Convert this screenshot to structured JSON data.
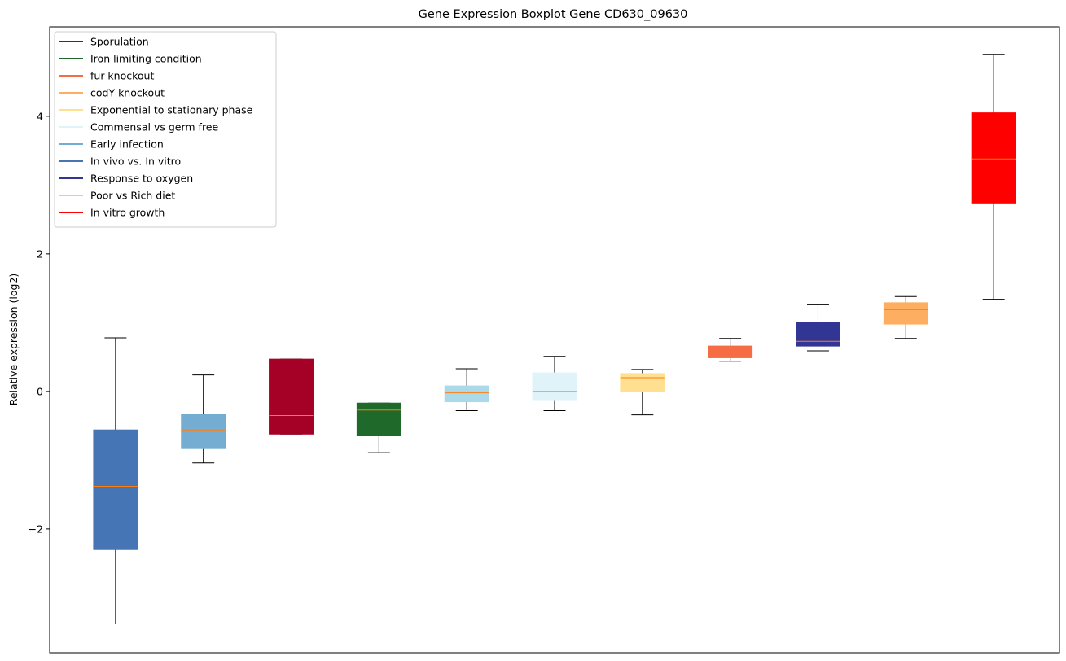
{
  "chart_data": {
    "type": "boxplot",
    "title": "Gene Expression Boxplot Gene CD630_09630",
    "xlabel": "",
    "ylabel": "Relative expression (log2)",
    "ylim": [
      -3.8,
      5.3
    ],
    "yticks": [
      -2,
      0,
      2,
      4
    ],
    "ytick_labels": [
      "−2",
      "0",
      "2",
      "4"
    ],
    "xticks_visible": false,
    "grid": false,
    "legend_position": "top-left",
    "median_color": "#ff7f0e",
    "legend": [
      {
        "label": "Sporulation",
        "color": "#a50026"
      },
      {
        "label": "Iron limiting condition",
        "color": "#1f6a2a"
      },
      {
        "label": "fur knockout",
        "color": "#f46d43"
      },
      {
        "label": "codY knockout",
        "color": "#fdae61"
      },
      {
        "label": "Exponential to stationary phase",
        "color": "#fee090"
      },
      {
        "label": "Commensal vs germ free",
        "color": "#e0f3f8"
      },
      {
        "label": "Early infection",
        "color": "#74add1"
      },
      {
        "label": "In vivo vs. In vitro",
        "color": "#4575b4"
      },
      {
        "label": "Response to oxygen",
        "color": "#313695"
      },
      {
        "label": "Poor vs Rich diet",
        "color": "#abd9e9"
      },
      {
        "label": "In vitro growth",
        "color": "#ff0000"
      }
    ],
    "boxes": [
      {
        "series": "In vivo vs. In vitro",
        "color": "#4575b4",
        "whisker_low": -3.38,
        "q1": -2.3,
        "median": -1.38,
        "q3": -0.56,
        "whisker_high": 0.78
      },
      {
        "series": "Early infection",
        "color": "#74add1",
        "whisker_low": -1.04,
        "q1": -0.82,
        "median": -0.56,
        "q3": -0.33,
        "whisker_high": 0.24
      },
      {
        "series": "Sporulation",
        "color": "#a50026",
        "whisker_low": -0.62,
        "q1": -0.62,
        "median": -0.35,
        "q3": 0.47,
        "whisker_high": 0.47
      },
      {
        "series": "Iron limiting condition",
        "color": "#1f6a2a",
        "whisker_low": -0.89,
        "q1": -0.64,
        "median": -0.27,
        "q3": -0.17,
        "whisker_high": -0.17
      },
      {
        "series": "Poor vs Rich diet",
        "color": "#abd9e9",
        "whisker_low": -0.28,
        "q1": -0.15,
        "median": -0.02,
        "q3": 0.08,
        "whisker_high": 0.33
      },
      {
        "series": "Commensal vs germ free",
        "color": "#e0f3f8",
        "whisker_low": -0.28,
        "q1": -0.12,
        "median": 0.0,
        "q3": 0.27,
        "whisker_high": 0.51
      },
      {
        "series": "Exponential to stationary phase",
        "color": "#fee090",
        "whisker_low": -0.34,
        "q1": 0.0,
        "median": 0.2,
        "q3": 0.26,
        "whisker_high": 0.32
      },
      {
        "series": "fur knockout",
        "color": "#f46d43",
        "whisker_low": 0.44,
        "q1": 0.49,
        "median": 0.49,
        "q3": 0.66,
        "whisker_high": 0.77
      },
      {
        "series": "Response to oxygen",
        "color": "#313695",
        "whisker_low": 0.59,
        "q1": 0.66,
        "median": 0.73,
        "q3": 1.0,
        "whisker_high": 1.26
      },
      {
        "series": "codY knockout",
        "color": "#fdae61",
        "whisker_low": 0.77,
        "q1": 0.98,
        "median": 1.19,
        "q3": 1.29,
        "whisker_high": 1.38
      },
      {
        "series": "In vitro growth",
        "color": "#ff0000",
        "whisker_low": 1.34,
        "q1": 2.74,
        "median": 3.38,
        "q3": 4.05,
        "whisker_high": 4.9
      }
    ]
  }
}
